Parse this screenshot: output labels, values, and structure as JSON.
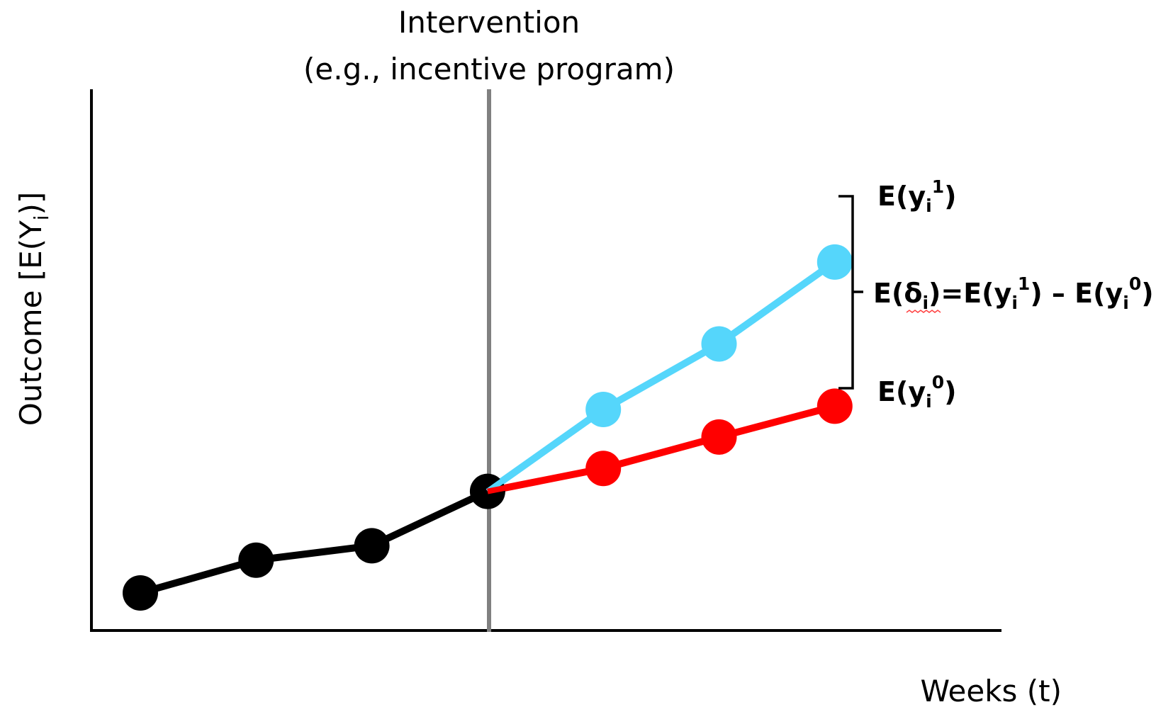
{
  "intervention": {
    "line1": "Intervention",
    "line2": "(e.g., incentive program)"
  },
  "axes": {
    "y_label_main": "Outcome [E(Y",
    "y_label_sub": "i",
    "y_label_end": ")]",
    "x_label": "Weeks (t)"
  },
  "labels": {
    "treated": {
      "main": "E(y",
      "sub": "i",
      "sup": "1",
      "end": ")"
    },
    "control": {
      "main": "E(y",
      "sub": "i",
      "sup": "0",
      "end": ")"
    },
    "effect": {
      "part1": "E(δ",
      "sub1": "i",
      "part2": ")=E(y",
      "sub2": "i",
      "sup2": "1",
      "part3": ") – E(y",
      "sub3": "i",
      "sup3": "0",
      "part4": ")"
    }
  },
  "colors": {
    "baseline": "#000000",
    "treated": "#55d6fb",
    "control": "#ff0000",
    "intervention_line": "#808080",
    "axis": "#000000"
  },
  "chart_data": {
    "type": "line",
    "x": [
      1,
      2,
      3,
      4,
      5,
      6,
      7
    ],
    "intervention_x": 4,
    "series": [
      {
        "key": "baseline",
        "x": [
          1,
          2,
          3,
          4
        ],
        "values": [
          1.0,
          1.5,
          1.72,
          2.55
        ]
      },
      {
        "key": "treated",
        "x": [
          4,
          5,
          6,
          7
        ],
        "values": [
          2.55,
          3.8,
          4.8,
          6.05
        ]
      },
      {
        "key": "control",
        "x": [
          4,
          5,
          6,
          7
        ],
        "values": [
          2.55,
          2.9,
          3.38,
          3.85
        ]
      }
    ]
  }
}
